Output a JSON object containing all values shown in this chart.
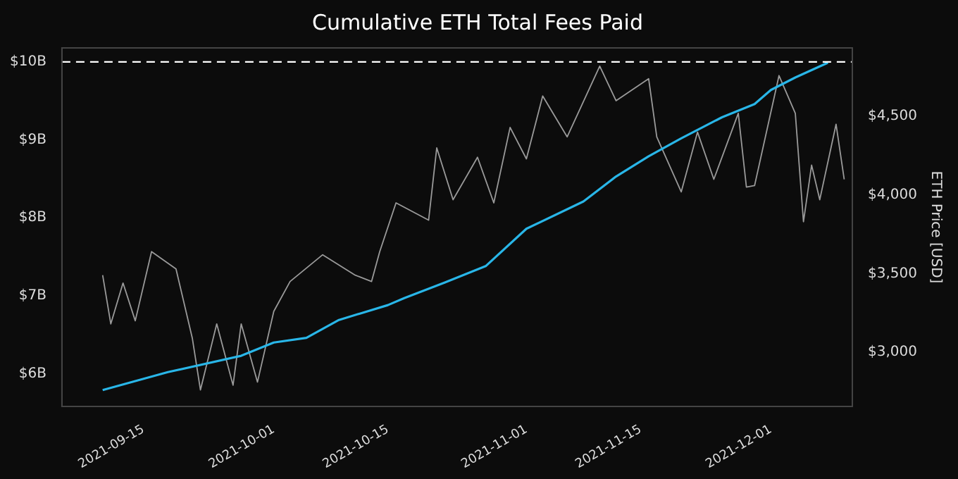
{
  "chart_data": {
    "type": "line",
    "title": "Cumulative ETH Total Fees Paid",
    "y2label": "ETH Price [USD]",
    "xlim": [
      "2021-09-05",
      "2021-12-11"
    ],
    "xticks": [
      "2021-09-15",
      "2021-10-01",
      "2021-10-15",
      "2021-11-01",
      "2021-11-15",
      "2021-12-01"
    ],
    "ylim": [
      5.58,
      10.18
    ],
    "yticks": [
      {
        "value": 6,
        "label": "$6B"
      },
      {
        "value": 7,
        "label": "$7B"
      },
      {
        "value": 8,
        "label": "$8B"
      },
      {
        "value": 9,
        "label": "$9B"
      },
      {
        "value": 10,
        "label": "$10B"
      }
    ],
    "y2lim": [
      2655,
      4936
    ],
    "y2ticks": [
      {
        "value": 3000,
        "label": "$3,000"
      },
      {
        "value": 3500,
        "label": "$3,500"
      },
      {
        "value": 4000,
        "label": "$4,000"
      },
      {
        "value": 4500,
        "label": "$4,500"
      }
    ],
    "grid": false,
    "legend": false,
    "marker": "none",
    "ref_lines": [
      {
        "axis": "y",
        "value": 10,
        "label": null,
        "color": "#ffffff",
        "line_style": "dashed"
      }
    ],
    "series": [
      {
        "color": "#9a9a9a",
        "axis": "y2",
        "x": [
          "2021-09-10",
          "2021-09-11",
          "2021-09-12T12:00",
          "2021-09-14",
          "2021-09-16",
          "2021-09-19",
          "2021-09-21",
          "2021-09-22",
          "2021-09-24",
          "2021-09-26",
          "2021-09-27",
          "2021-09-29",
          "2021-10-01",
          "2021-10-03",
          "2021-10-07",
          "2021-10-11",
          "2021-10-13",
          "2021-10-14",
          "2021-10-16",
          "2021-10-20",
          "2021-10-21",
          "2021-10-23",
          "2021-10-26",
          "2021-10-28",
          "2021-10-30",
          "2021-11-01",
          "2021-11-03",
          "2021-11-06",
          "2021-11-10",
          "2021-11-12",
          "2021-11-16",
          "2021-11-17",
          "2021-11-20",
          "2021-11-22",
          "2021-11-24",
          "2021-11-27",
          "2021-11-28",
          "2021-11-29",
          "2021-12-02",
          "2021-12-04",
          "2021-12-05",
          "2021-12-06",
          "2021-12-07",
          "2021-12-09",
          "2021-12-10"
        ],
        "values": [
          3490,
          3180,
          3440,
          3200,
          3640,
          3530,
          3090,
          2760,
          3180,
          2790,
          3180,
          2810,
          3260,
          3450,
          3620,
          3490,
          3450,
          3640,
          3950,
          3840,
          4300,
          3970,
          4240,
          3950,
          4430,
          4230,
          4630,
          4370,
          4820,
          4600,
          4740,
          4370,
          4020,
          4400,
          4100,
          4520,
          4050,
          4060,
          4760,
          4520,
          3830,
          4190,
          3970,
          4450,
          4100
        ]
      },
      {
        "color": "#29b6e8",
        "axis": "y",
        "x": [
          "2021-09-10",
          "2021-09-18",
          "2021-09-27",
          "2021-10-01",
          "2021-10-05",
          "2021-10-09",
          "2021-10-15",
          "2021-10-17",
          "2021-10-22",
          "2021-10-27",
          "2021-11-01",
          "2021-11-08",
          "2021-11-12",
          "2021-11-16",
          "2021-11-20",
          "2021-11-25",
          "2021-11-29",
          "2021-12-01",
          "2021-12-04",
          "2021-12-08"
        ],
        "values": [
          5.79,
          6.02,
          6.23,
          6.4,
          6.46,
          6.69,
          6.88,
          6.97,
          7.17,
          7.38,
          7.86,
          8.21,
          8.53,
          8.79,
          9.02,
          9.29,
          9.46,
          9.64,
          9.8,
          9.99
        ]
      }
    ]
  }
}
